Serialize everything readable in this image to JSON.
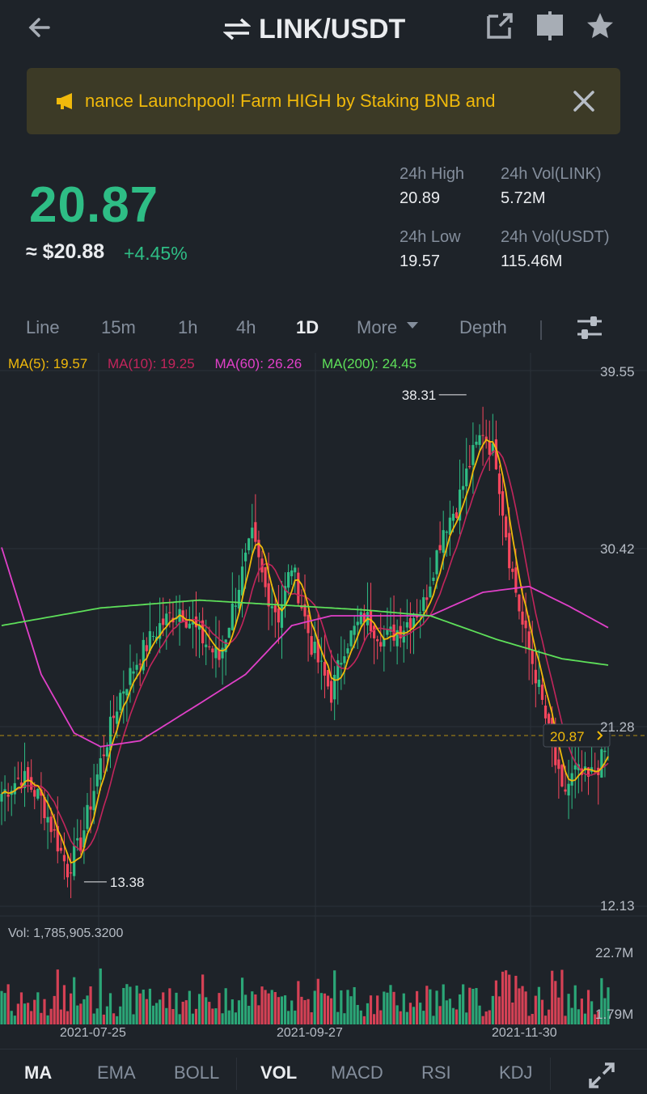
{
  "header": {
    "pair": "LINK/USDT"
  },
  "banner": {
    "text": "nance Launchpool! Farm HIGH by Staking BNB and"
  },
  "ticker": {
    "price": "20.87",
    "fiat": "≈ $20.88",
    "change": "+4.45%",
    "stats": [
      {
        "label": "24h High",
        "value": "20.89"
      },
      {
        "label": "24h Vol(LINK)",
        "value": "5.72M"
      },
      {
        "label": "24h Low",
        "value": "19.57"
      },
      {
        "label": "24h Vol(USDT)",
        "value": "115.46M"
      }
    ]
  },
  "intervals": [
    "Line",
    "15m",
    "1h",
    "4h",
    "1D",
    "More",
    "Depth"
  ],
  "active_interval": "1D",
  "indicators": [
    {
      "label": "MA(5): 19.57",
      "color": "#f0b90b"
    },
    {
      "label": "MA(10): 19.25",
      "color": "#c2255c"
    },
    {
      "label": "MA(60): 26.26",
      "color": "#e040c8"
    },
    {
      "label": "MA(200): 24.45",
      "color": "#5ee05a"
    }
  ],
  "chart_data": {
    "type": "candlestick",
    "price_axis": [
      "39.55",
      "30.42",
      "21.28",
      "12.13"
    ],
    "ylim": [
      12.13,
      39.55
    ],
    "high_marker": "38.31",
    "low_marker": "13.38",
    "current_price": "20.87",
    "volume_label": "Vol: 1,785,905.3200",
    "volume_axis": [
      "22.7M",
      "1.79M"
    ],
    "dates": [
      "2021-07-25",
      "2021-09-27",
      "2021-11-30"
    ],
    "close_path": [
      [
        0,
        17.9
      ],
      [
        6,
        18.8
      ],
      [
        12,
        17.6
      ],
      [
        16,
        15.8
      ],
      [
        20,
        14.0
      ],
      [
        24,
        15.4
      ],
      [
        30,
        19.5
      ],
      [
        36,
        23.0
      ],
      [
        42,
        25.0
      ],
      [
        48,
        26.5
      ],
      [
        54,
        27.4
      ],
      [
        60,
        26.0
      ],
      [
        66,
        24.8
      ],
      [
        72,
        28.6
      ],
      [
        76,
        31.0
      ],
      [
        80,
        28.4
      ],
      [
        84,
        27.0
      ],
      [
        88,
        29.6
      ],
      [
        94,
        25.5
      ],
      [
        100,
        23.0
      ],
      [
        104,
        25.5
      ],
      [
        110,
        27.0
      ],
      [
        116,
        25.8
      ],
      [
        122,
        26.5
      ],
      [
        128,
        27.6
      ],
      [
        134,
        31.5
      ],
      [
        138,
        32.6
      ],
      [
        142,
        34.8
      ],
      [
        146,
        36.5
      ],
      [
        150,
        35.0
      ],
      [
        154,
        30.0
      ],
      [
        158,
        26.5
      ],
      [
        162,
        24.0
      ],
      [
        166,
        21.0
      ],
      [
        170,
        17.8
      ],
      [
        174,
        19.0
      ],
      [
        178,
        18.6
      ],
      [
        182,
        19.6
      ],
      [
        185,
        20.87
      ]
    ],
    "ma60_path": [
      [
        0,
        30.5
      ],
      [
        12,
        24.0
      ],
      [
        22,
        21.0
      ],
      [
        30,
        20.3
      ],
      [
        42,
        20.6
      ],
      [
        60,
        22.5
      ],
      [
        74,
        24.0
      ],
      [
        88,
        26.5
      ],
      [
        100,
        27.0
      ],
      [
        116,
        27.0
      ],
      [
        130,
        27.0
      ],
      [
        146,
        28.2
      ],
      [
        160,
        28.5
      ],
      [
        172,
        27.5
      ],
      [
        185,
        26.3
      ]
    ],
    "ma200_path": [
      [
        0,
        26.5
      ],
      [
        30,
        27.4
      ],
      [
        60,
        27.8
      ],
      [
        90,
        27.5
      ],
      [
        110,
        27.3
      ],
      [
        130,
        27.0
      ],
      [
        150,
        25.8
      ],
      [
        170,
        24.8
      ],
      [
        185,
        24.45
      ]
    ],
    "candles": 185
  },
  "bottom_tabs": [
    "MA",
    "EMA",
    "BOLL",
    "VOL",
    "MACD",
    "RSI",
    "KDJ"
  ],
  "colors": {
    "up": "#2ebd85",
    "down": "#f6465d",
    "background": "#1e2329",
    "accent": "#f0b90b"
  },
  "icons": [
    "back-arrow-icon",
    "swap-icon",
    "share-icon",
    "split-view-icon",
    "star-icon",
    "megaphone-icon",
    "close-icon",
    "settings-sliders-icon",
    "caret-down-icon",
    "expand-icon"
  ]
}
